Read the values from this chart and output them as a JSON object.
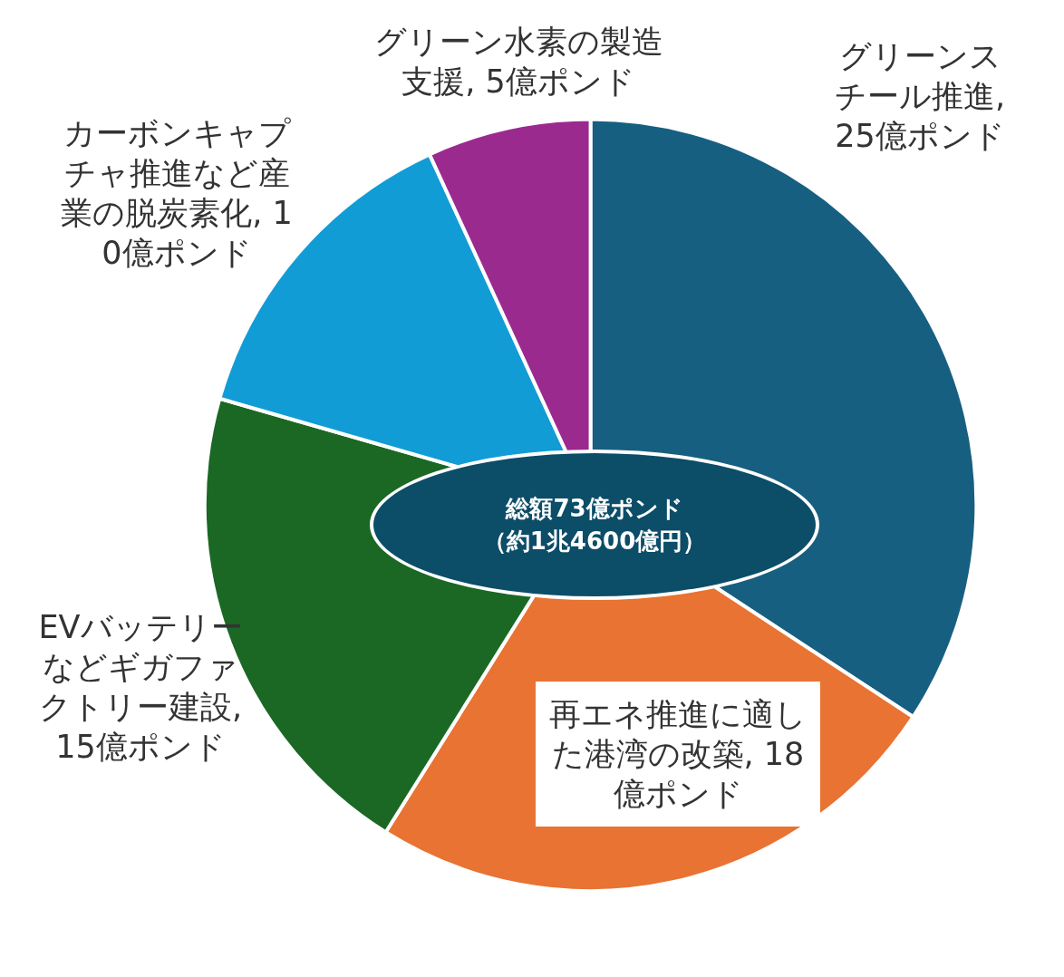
{
  "chart_data": {
    "type": "pie",
    "categories": [
      "グリーンスチール推進",
      "再エネ推進に適した港湾の改築",
      "EVバッテリーなどギガファクトリー建設",
      "カーボンキャプチャ推進など産業の脱炭素化",
      "グリーン水素の製造支援"
    ],
    "values": [
      25,
      18,
      15,
      10,
      5
    ],
    "value_labels": [
      ", 25億ポンド",
      ", 18億ポンド",
      ", 15億ポンド",
      ", 10億ポンド",
      ", 5億ポンド"
    ],
    "colors": [
      "#175f80",
      "#e87332",
      "#1a6824",
      "#129cd6",
      "#9b2a8f"
    ],
    "annotations": [
      "総額73億ポンド",
      "（約1兆4600億円）"
    ]
  }
}
